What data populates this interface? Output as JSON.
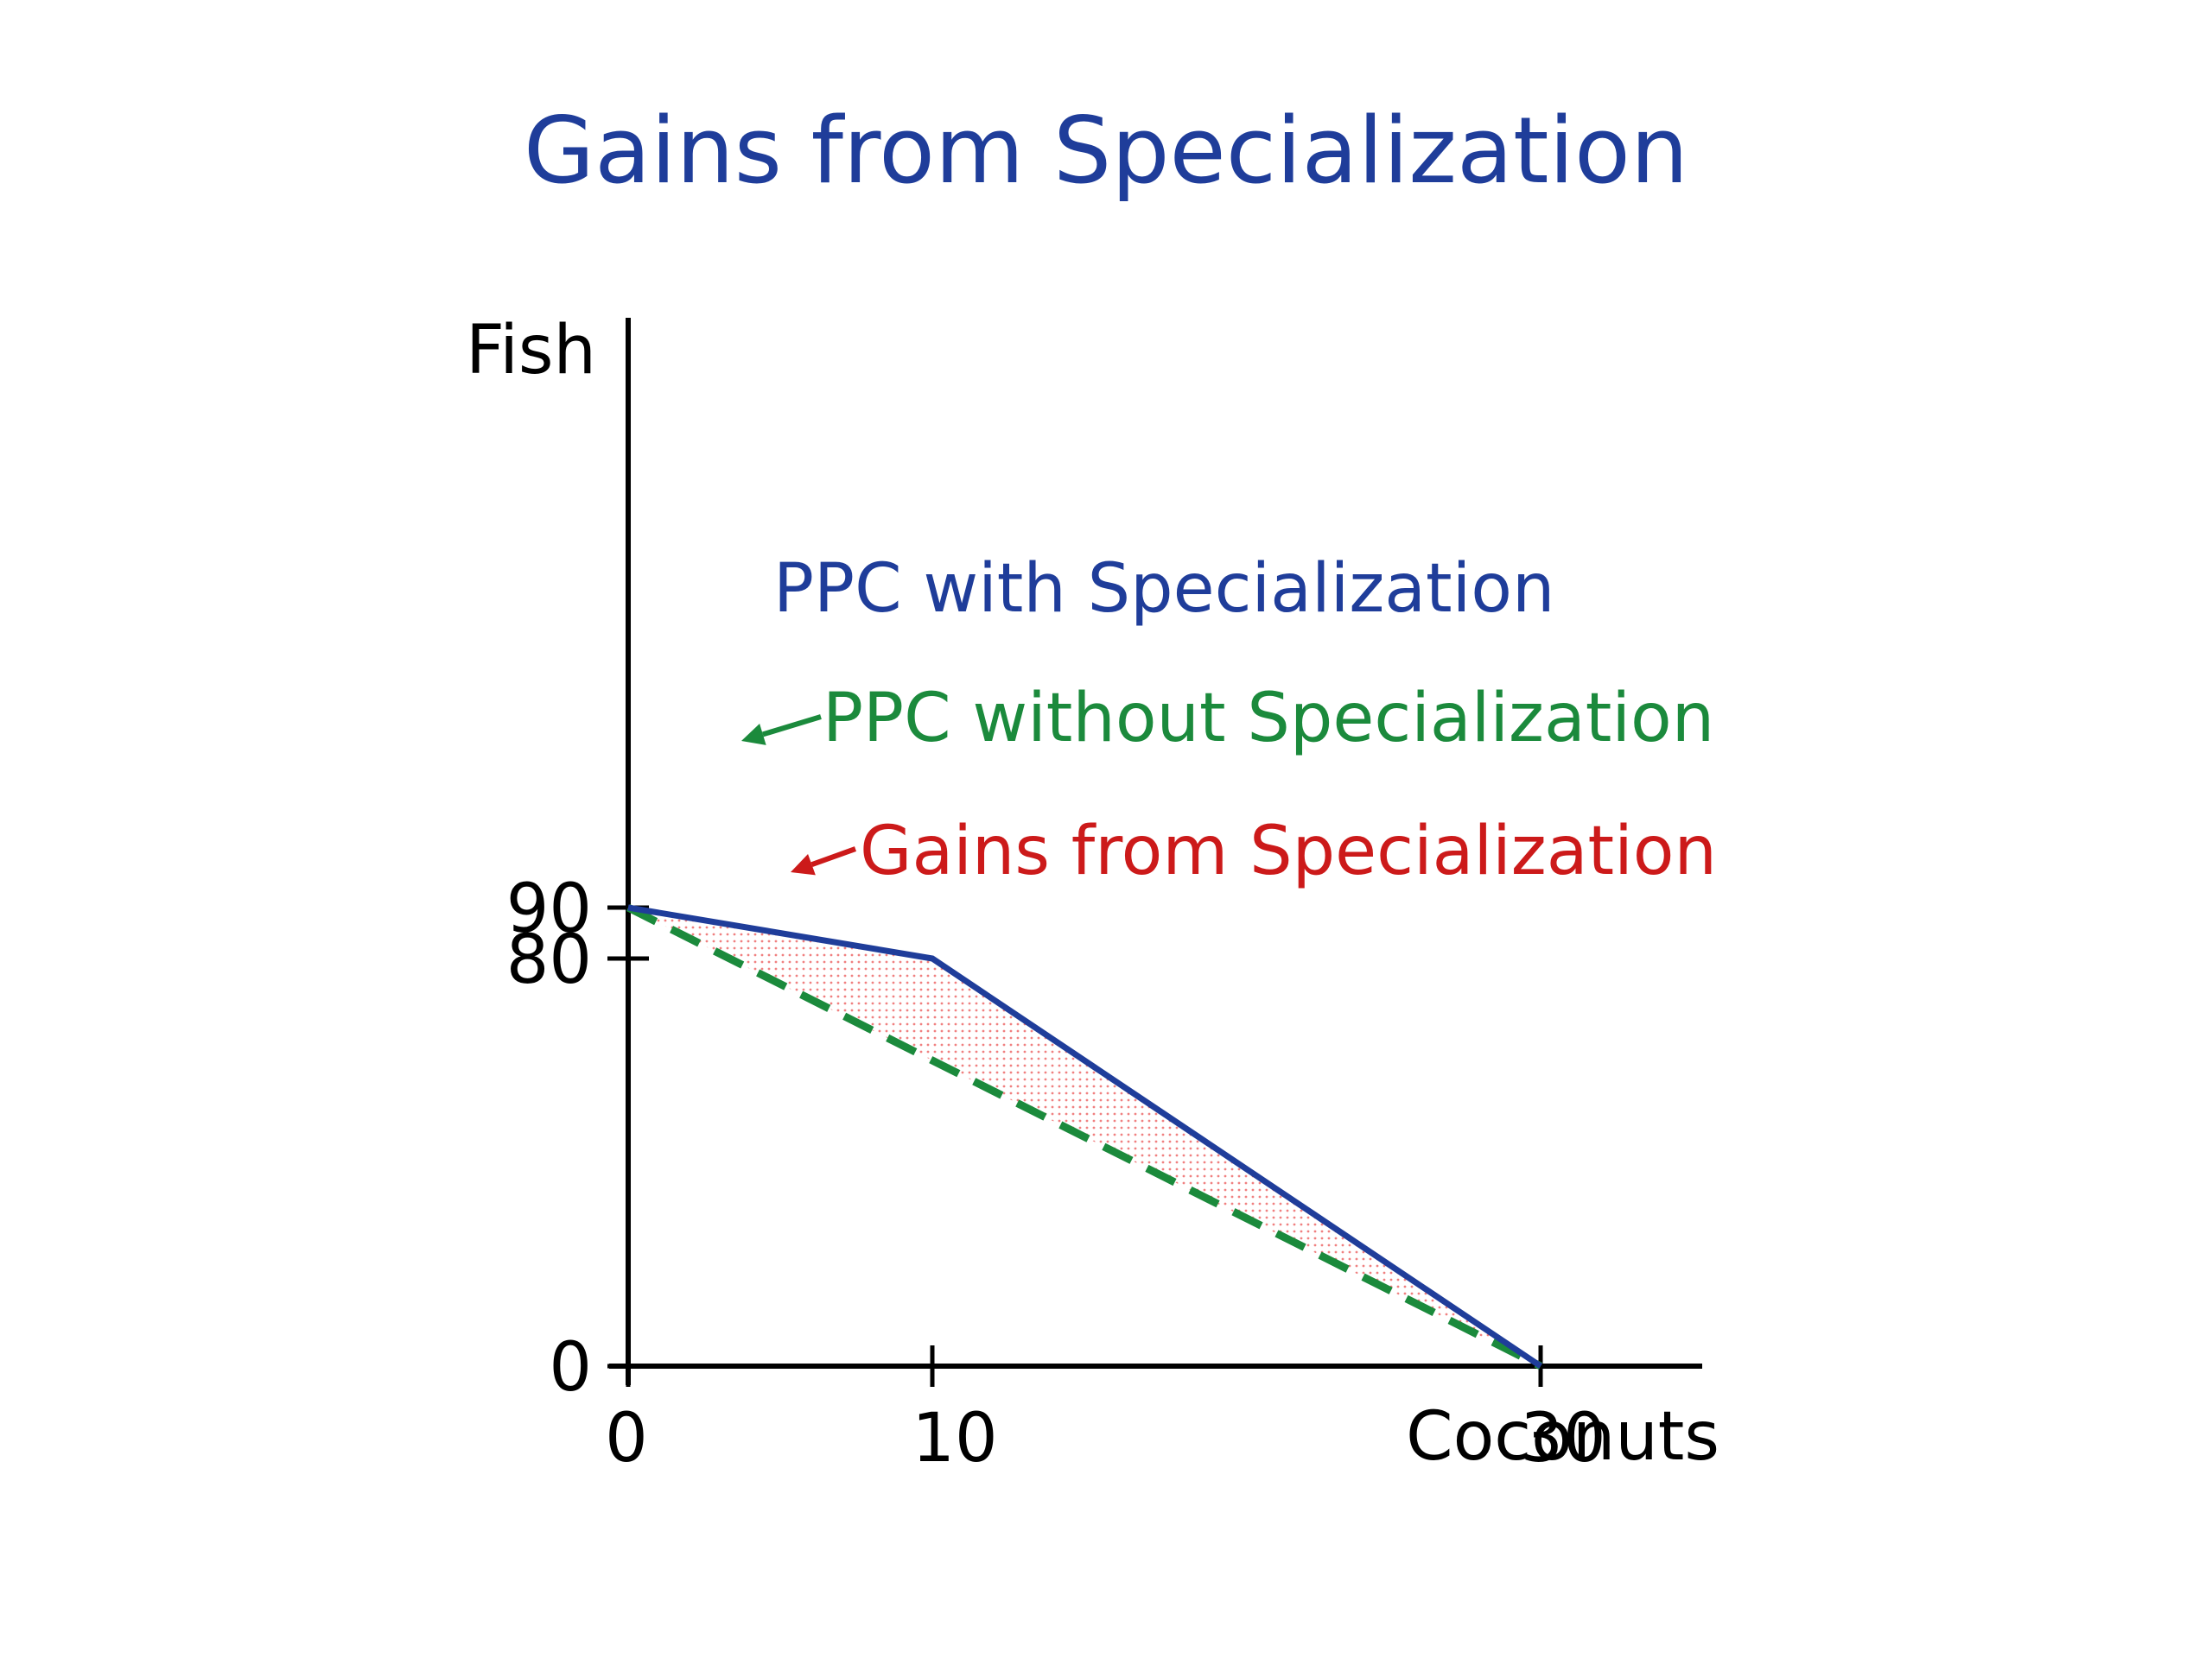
{
  "chart_data": {
    "type": "line",
    "title": "Gains from Specialization",
    "xlabel": "Coconuts",
    "ylabel": "Fish",
    "xlim": [
      0,
      30
    ],
    "ylim": [
      0,
      90
    ],
    "x_ticks": [
      0,
      10,
      30
    ],
    "y_ticks": [
      0,
      80,
      90
    ],
    "grid": false,
    "series": [
      {
        "name": "PPC with Specialization",
        "style": "solid",
        "points": [
          [
            0,
            90
          ],
          [
            10,
            80
          ],
          [
            30,
            0
          ]
        ]
      },
      {
        "name": "PPC without Specialization",
        "style": "dashed",
        "points": [
          [
            0,
            90
          ],
          [
            30,
            0
          ]
        ]
      }
    ],
    "region": {
      "name": "Gains from Specialization",
      "style": "dotted"
    },
    "colors": {
      "title": "#1F3D9A",
      "with_spec": "#1F3D9A",
      "without_spec": "#1B8A3C",
      "gains": "#CC1A1A",
      "axis": "#000000",
      "shading": "#F08080"
    }
  }
}
